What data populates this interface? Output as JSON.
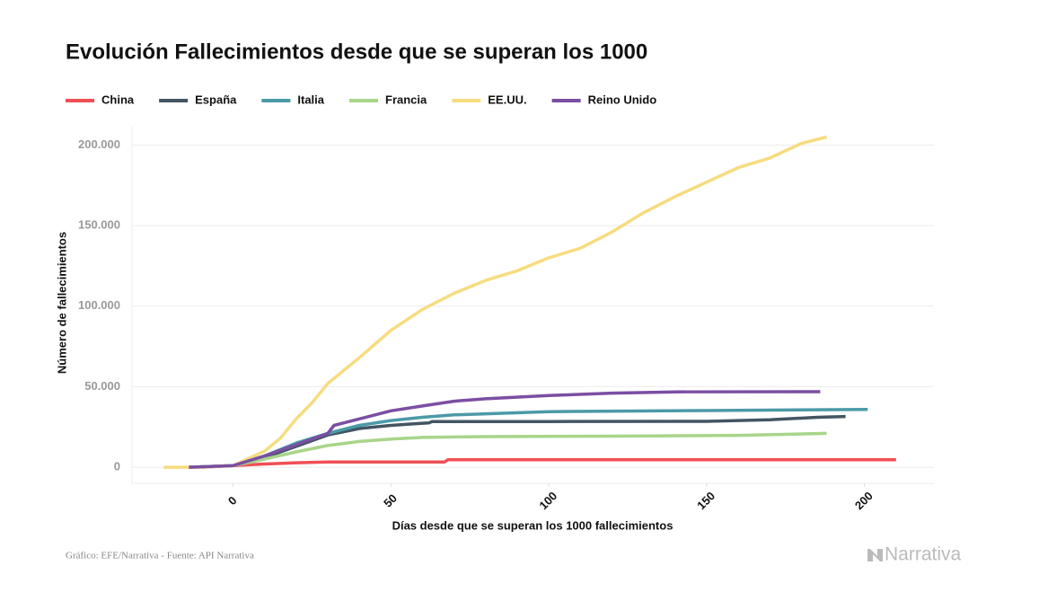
{
  "chart_data": {
    "type": "line",
    "title": "Evolución Fallecimientos desde que se superan los 1000",
    "x_label": "Días desde que se superan los 1000 fallecimientos",
    "y_label": "Número de fallecimientos",
    "source": "Gráfico: EFE/Narrativa - Fuente: API Narrativa",
    "brand": "Narrativa",
    "xlim": [
      -32,
      222
    ],
    "ylim": [
      -10000,
      212000
    ],
    "xticks": [
      0,
      50,
      100,
      150,
      200
    ],
    "yticks": [
      0,
      {
        "value": 50000,
        "label": "50.000"
      },
      {
        "value": 100000,
        "label": "100.000"
      },
      {
        "value": 150000,
        "label": "150.000"
      },
      {
        "value": 200000,
        "label": "200.000"
      }
    ],
    "grid": true,
    "series": [
      {
        "name": "China",
        "color": "#ef4f55",
        "x": [
          -10,
          0,
          10,
          20,
          30,
          60,
          67,
          68,
          210
        ],
        "values": [
          0,
          1000,
          2000,
          2800,
          3200,
          3300,
          3300,
          4630,
          4640
        ]
      },
      {
        "name": "España",
        "color": "#435563",
        "x": [
          -14,
          0,
          10,
          20,
          30,
          40,
          50,
          60,
          62,
          63,
          100,
          150,
          170,
          185,
          194
        ],
        "values": [
          0,
          1000,
          6000,
          13000,
          20000,
          24000,
          26000,
          27300,
          27500,
          28300,
          28400,
          28500,
          29500,
          31000,
          31500
        ]
      },
      {
        "name": "Italia",
        "color": "#4b9aa8",
        "x": [
          -14,
          0,
          10,
          20,
          30,
          40,
          50,
          60,
          70,
          100,
          150,
          201
        ],
        "values": [
          0,
          1000,
          7000,
          15000,
          21000,
          26000,
          29000,
          31000,
          32500,
          34500,
          35200,
          35900
        ]
      },
      {
        "name": "Francia",
        "color": "#a8d58a",
        "x": [
          -14,
          0,
          10,
          20,
          30,
          40,
          50,
          60,
          80,
          120,
          160,
          188
        ],
        "values": [
          0,
          1000,
          5000,
          9500,
          13500,
          16000,
          17500,
          18500,
          19000,
          19300,
          19800,
          21000
        ]
      },
      {
        "name": "EE.UU.",
        "color": "#f7dc7f",
        "x": [
          -22,
          -10,
          0,
          10,
          15,
          20,
          25,
          30,
          40,
          50,
          60,
          70,
          80,
          90,
          100,
          110,
          120,
          130,
          140,
          150,
          160,
          170,
          180,
          188
        ],
        "values": [
          0,
          0,
          1000,
          10000,
          18000,
          30000,
          40000,
          52000,
          68000,
          85000,
          98000,
          108000,
          116000,
          122000,
          130000,
          136000,
          146000,
          158000,
          168000,
          177000,
          186000,
          192000,
          201000,
          205000
        ]
      },
      {
        "name": "Reino Unido",
        "color": "#7b4ea3",
        "x": [
          -14,
          0,
          10,
          20,
          30,
          32,
          40,
          50,
          60,
          70,
          80,
          100,
          120,
          140,
          186
        ],
        "values": [
          0,
          1000,
          7000,
          14000,
          21000,
          26000,
          30000,
          35000,
          38000,
          41000,
          42500,
          44500,
          46000,
          46800,
          46900
        ]
      }
    ]
  }
}
